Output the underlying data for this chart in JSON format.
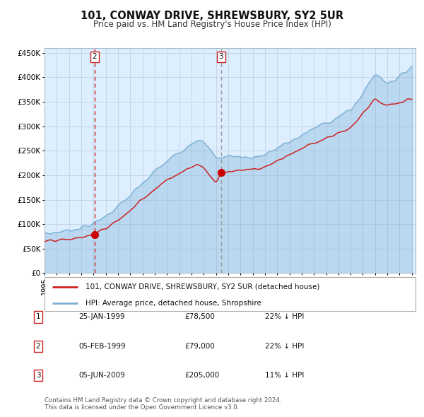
{
  "title": "101, CONWAY DRIVE, SHREWSBURY, SY2 5UR",
  "subtitle": "Price paid vs. HM Land Registry's House Price Index (HPI)",
  "line1_label": "101, CONWAY DRIVE, SHREWSBURY, SY2 5UR (detached house)",
  "line2_label": "HPI: Average price, detached house, Shropshire",
  "sale1_date": "25-JAN-1999",
  "sale1_price": 78500,
  "sale1_pct": "22% ↓ HPI",
  "sale2_date": "05-FEB-1999",
  "sale2_price": 79000,
  "sale2_pct": "22% ↓ HPI",
  "sale3_date": "05-JUN-2009",
  "sale3_price": 205000,
  "sale3_pct": "11% ↓ HPI",
  "footer": "Contains HM Land Registry data © Crown copyright and database right 2024.\nThis data is licensed under the Open Government Licence v3.0.",
  "hpi_color": "#7bafd4",
  "price_color": "#cc2222",
  "marker_color": "#cc0000",
  "vline1_color": "#cc2222",
  "vline2_color": "#999999",
  "bg_chart": "#ddeeff",
  "bg_fig": "#ffffff",
  "grid_color": "#bbccdd",
  "sale1_year": 1999.07,
  "sale2_year": 1999.1,
  "sale3_year": 2009.42
}
